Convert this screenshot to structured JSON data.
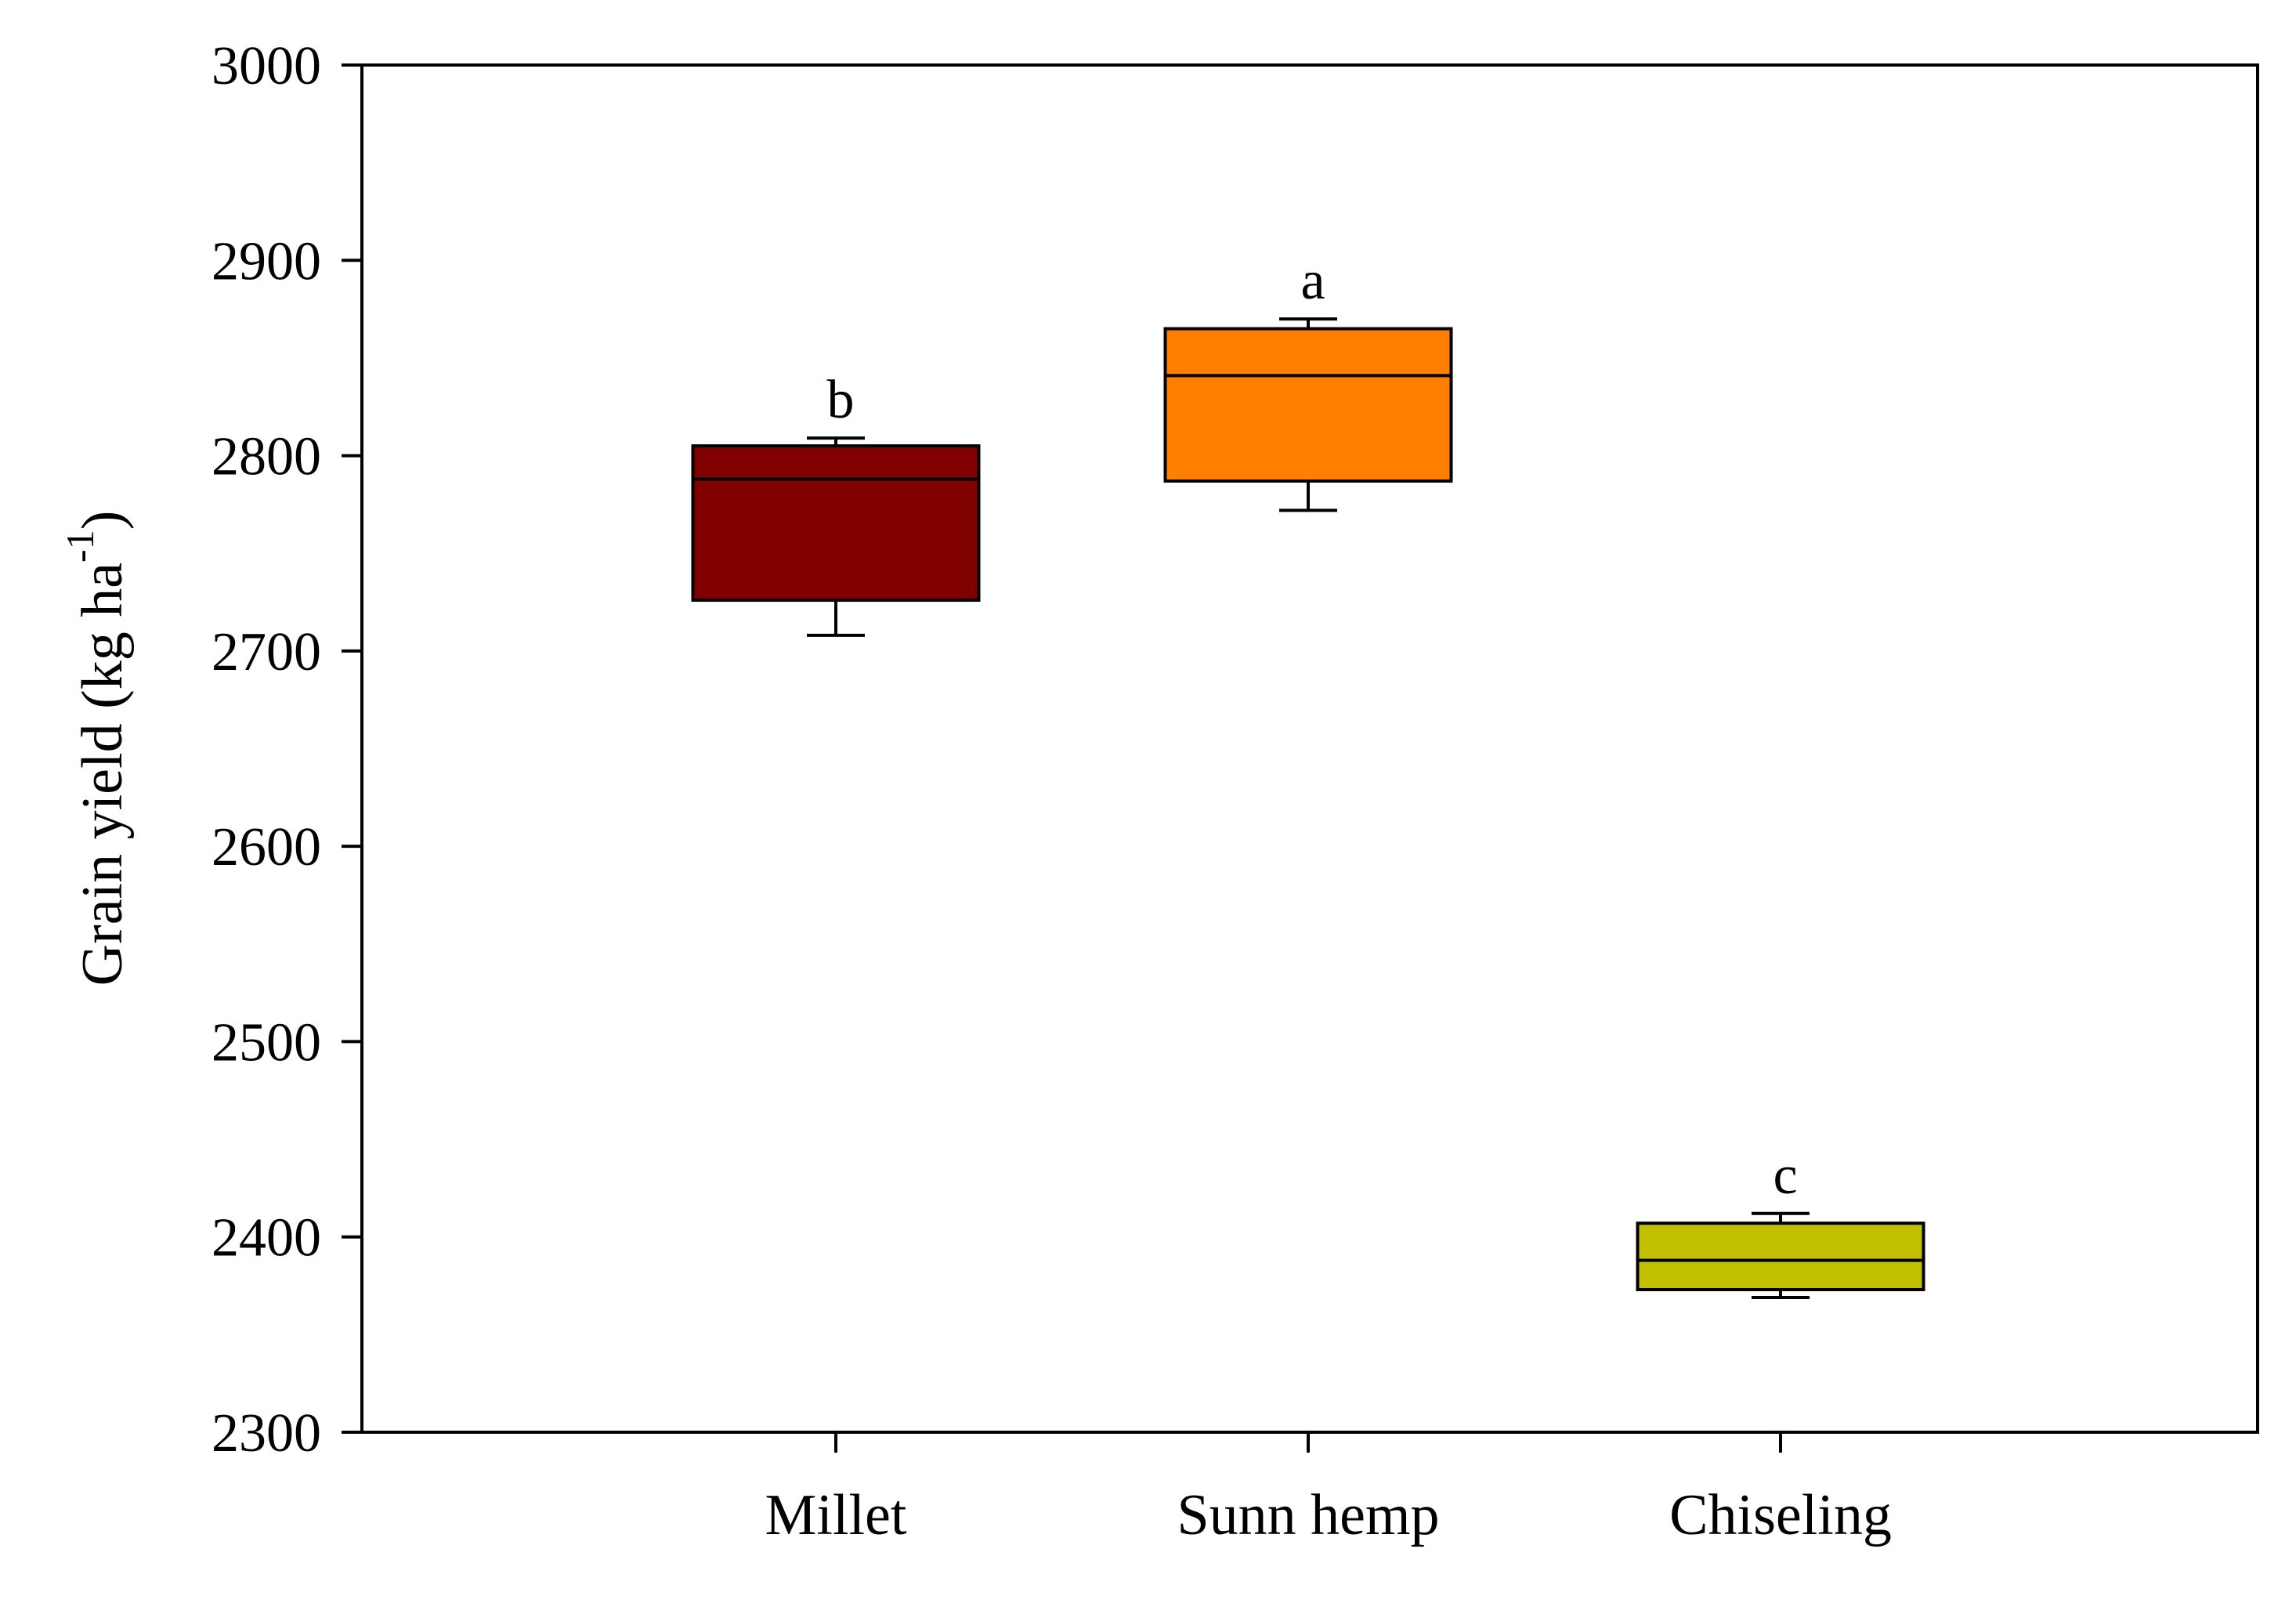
{
  "chart_data": {
    "type": "box",
    "title": "",
    "xlabel": "",
    "ylabel": "Grain yield (kg ha",
    "ylabel_superscript": "-1",
    "ylabel_suffix": ")",
    "ylim": [
      2300,
      3000
    ],
    "yticks": [
      "2300",
      "2400",
      "2500",
      "2600",
      "2700",
      "2800",
      "2900",
      "3000"
    ],
    "grid": false,
    "categories": [
      "Millet",
      "Sunn hemp",
      "Chiseling"
    ],
    "boxes": [
      {
        "name": "Millet",
        "whisker_low": 2708,
        "q1": 2726,
        "median": 2788,
        "q3": 2805,
        "whisker_high": 2809,
        "letter": "b",
        "color": "#800000"
      },
      {
        "name": "Sunn hemp",
        "whisker_low": 2772,
        "q1": 2787,
        "median": 2841,
        "q3": 2865,
        "whisker_high": 2870,
        "letter": "a",
        "color": "#ff8000"
      },
      {
        "name": "Chiseling",
        "whisker_low": 2369,
        "q1": 2373,
        "median": 2388,
        "q3": 2407,
        "whisker_high": 2412,
        "letter": "c",
        "color": "#c0c000"
      }
    ]
  }
}
